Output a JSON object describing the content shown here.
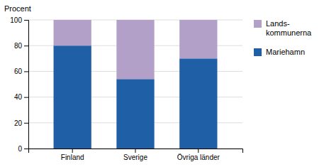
{
  "chart_data": {
    "type": "bar",
    "stacked": true,
    "categories": [
      "Finland",
      "Sverige",
      "Övriga länder"
    ],
    "series": [
      {
        "name": "Mariehamn",
        "color": "#1f5fa6",
        "values": [
          80,
          54,
          70
        ]
      },
      {
        "name": "Lands-\nkommunerna",
        "color": "#b3a0c8",
        "values": [
          20,
          46,
          30
        ]
      }
    ],
    "y_label": "Procent",
    "ylim": [
      0,
      100
    ],
    "yticks": [
      0,
      20,
      40,
      60,
      80,
      100
    ],
    "grid": true,
    "legend": "right"
  }
}
